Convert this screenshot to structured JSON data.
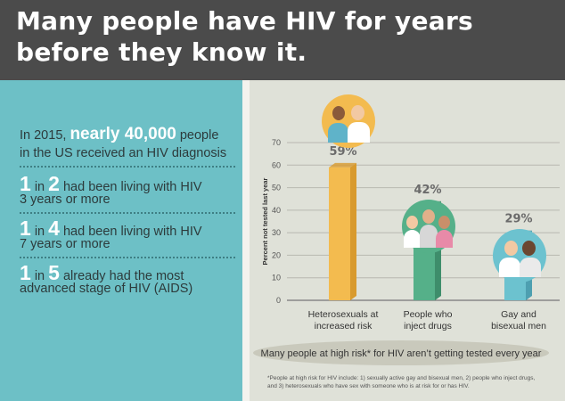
{
  "header": {
    "title_line1": "Many people have HIV for years",
    "title_line2": "before they know it."
  },
  "left_panel": {
    "intro_pre": "In 2015,",
    "intro_highlight": "nearly 40,000",
    "intro_post": "people",
    "intro_line2": "in the US received an HIV diagnosis",
    "stat1_num": "1",
    "stat1_rest": "in",
    "stat1_num2": "2",
    "stat1_line1": "had been living with HIV",
    "stat1_line2": "3 years or more",
    "stat2_num": "1",
    "stat2_rest": "in",
    "stat2_num2": "4",
    "stat2_line1": "had been living with HIV",
    "stat2_line2": "7 years or more",
    "stat3_num": "1",
    "stat3_rest": "in",
    "stat3_num2": "5",
    "stat3_line1": "already had the most",
    "stat3_line2": "advanced stage of HIV (AIDS)"
  },
  "colors": {
    "header_bg": "#4b4b4b",
    "left_bg": "#6dc0c6",
    "bar_orange": "#f3bb4f",
    "bar_green": "#55b089",
    "bar_blue": "#6cc2cf",
    "icon_bg_orange": "#f3bb4f",
    "icon_bg_green": "#55b089",
    "icon_bg_blue": "#6cc2cf"
  },
  "chart_data": {
    "type": "bar",
    "ylabel": "Percent not tested last year",
    "ylim": [
      0,
      70
    ],
    "yticks": [
      "0",
      "10",
      "20",
      "30",
      "40",
      "50",
      "60",
      "70"
    ],
    "categories": [
      "Heterosexuals at increased risk",
      "People who inject drugs",
      "Gay and bisexual men"
    ],
    "category_lines": [
      [
        "Heterosexuals at",
        "increased risk"
      ],
      [
        "People who",
        "inject drugs"
      ],
      [
        "Gay and",
        "bisexual men"
      ]
    ],
    "values": [
      59,
      42,
      29
    ],
    "value_labels": [
      "59%",
      "42%",
      "29%"
    ],
    "caption": "Many people at high risk* for HIV aren’t getting tested every year",
    "grid": true
  },
  "footnote": {
    "line1": "*People at high risk for HIV include: 1) sexually active gay and bisexual men, 2) people who inject drugs,",
    "line2": "and 3)  heterosexuals who have sex with someone who is at risk for or has HIV."
  }
}
